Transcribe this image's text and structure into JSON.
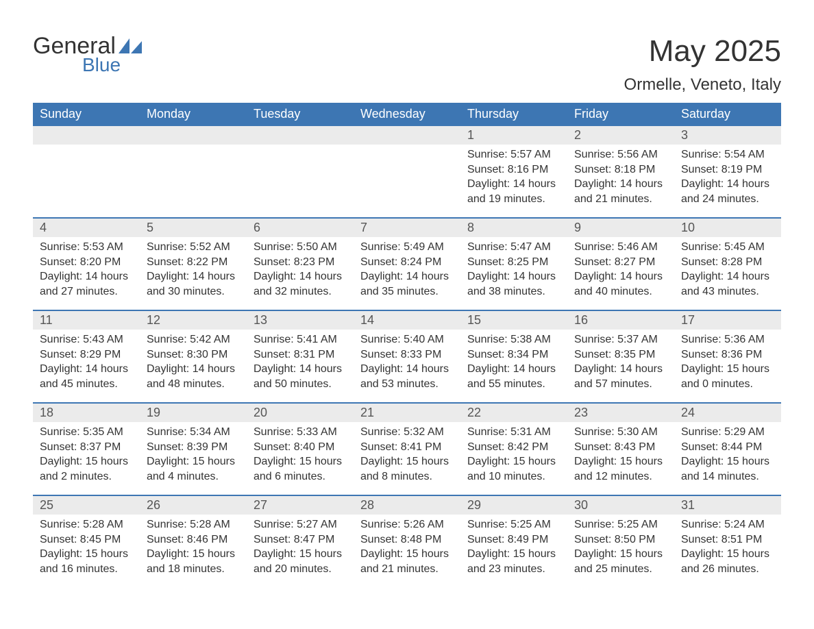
{
  "brand": {
    "word1": "General",
    "word2": "Blue",
    "text_color": "#333333",
    "accent_color": "#3d76b3"
  },
  "title": "May 2025",
  "location": "Ormelle, Veneto, Italy",
  "colors": {
    "header_bg": "#3d76b3",
    "header_text": "#ffffff",
    "daynum_bg": "#ebebeb",
    "daynum_text": "#555555",
    "body_text": "#333333",
    "week_divider": "#3d76b3",
    "page_bg": "#ffffff"
  },
  "typography": {
    "title_fontsize_pt": 33,
    "location_fontsize_pt": 18,
    "weekday_fontsize_pt": 14,
    "daynum_fontsize_pt": 14,
    "cell_fontsize_pt": 12,
    "font_family": "Arial"
  },
  "calendar": {
    "type": "table",
    "weekdays": [
      "Sunday",
      "Monday",
      "Tuesday",
      "Wednesday",
      "Thursday",
      "Friday",
      "Saturday"
    ],
    "weeks": [
      [
        {
          "day": "",
          "sunrise": "",
          "sunset": "",
          "daylight1": "",
          "daylight2": ""
        },
        {
          "day": "",
          "sunrise": "",
          "sunset": "",
          "daylight1": "",
          "daylight2": ""
        },
        {
          "day": "",
          "sunrise": "",
          "sunset": "",
          "daylight1": "",
          "daylight2": ""
        },
        {
          "day": "",
          "sunrise": "",
          "sunset": "",
          "daylight1": "",
          "daylight2": ""
        },
        {
          "day": "1",
          "sunrise": "Sunrise: 5:57 AM",
          "sunset": "Sunset: 8:16 PM",
          "daylight1": "Daylight: 14 hours",
          "daylight2": "and 19 minutes."
        },
        {
          "day": "2",
          "sunrise": "Sunrise: 5:56 AM",
          "sunset": "Sunset: 8:18 PM",
          "daylight1": "Daylight: 14 hours",
          "daylight2": "and 21 minutes."
        },
        {
          "day": "3",
          "sunrise": "Sunrise: 5:54 AM",
          "sunset": "Sunset: 8:19 PM",
          "daylight1": "Daylight: 14 hours",
          "daylight2": "and 24 minutes."
        }
      ],
      [
        {
          "day": "4",
          "sunrise": "Sunrise: 5:53 AM",
          "sunset": "Sunset: 8:20 PM",
          "daylight1": "Daylight: 14 hours",
          "daylight2": "and 27 minutes."
        },
        {
          "day": "5",
          "sunrise": "Sunrise: 5:52 AM",
          "sunset": "Sunset: 8:22 PM",
          "daylight1": "Daylight: 14 hours",
          "daylight2": "and 30 minutes."
        },
        {
          "day": "6",
          "sunrise": "Sunrise: 5:50 AM",
          "sunset": "Sunset: 8:23 PM",
          "daylight1": "Daylight: 14 hours",
          "daylight2": "and 32 minutes."
        },
        {
          "day": "7",
          "sunrise": "Sunrise: 5:49 AM",
          "sunset": "Sunset: 8:24 PM",
          "daylight1": "Daylight: 14 hours",
          "daylight2": "and 35 minutes."
        },
        {
          "day": "8",
          "sunrise": "Sunrise: 5:47 AM",
          "sunset": "Sunset: 8:25 PM",
          "daylight1": "Daylight: 14 hours",
          "daylight2": "and 38 minutes."
        },
        {
          "day": "9",
          "sunrise": "Sunrise: 5:46 AM",
          "sunset": "Sunset: 8:27 PM",
          "daylight1": "Daylight: 14 hours",
          "daylight2": "and 40 minutes."
        },
        {
          "day": "10",
          "sunrise": "Sunrise: 5:45 AM",
          "sunset": "Sunset: 8:28 PM",
          "daylight1": "Daylight: 14 hours",
          "daylight2": "and 43 minutes."
        }
      ],
      [
        {
          "day": "11",
          "sunrise": "Sunrise: 5:43 AM",
          "sunset": "Sunset: 8:29 PM",
          "daylight1": "Daylight: 14 hours",
          "daylight2": "and 45 minutes."
        },
        {
          "day": "12",
          "sunrise": "Sunrise: 5:42 AM",
          "sunset": "Sunset: 8:30 PM",
          "daylight1": "Daylight: 14 hours",
          "daylight2": "and 48 minutes."
        },
        {
          "day": "13",
          "sunrise": "Sunrise: 5:41 AM",
          "sunset": "Sunset: 8:31 PM",
          "daylight1": "Daylight: 14 hours",
          "daylight2": "and 50 minutes."
        },
        {
          "day": "14",
          "sunrise": "Sunrise: 5:40 AM",
          "sunset": "Sunset: 8:33 PM",
          "daylight1": "Daylight: 14 hours",
          "daylight2": "and 53 minutes."
        },
        {
          "day": "15",
          "sunrise": "Sunrise: 5:38 AM",
          "sunset": "Sunset: 8:34 PM",
          "daylight1": "Daylight: 14 hours",
          "daylight2": "and 55 minutes."
        },
        {
          "day": "16",
          "sunrise": "Sunrise: 5:37 AM",
          "sunset": "Sunset: 8:35 PM",
          "daylight1": "Daylight: 14 hours",
          "daylight2": "and 57 minutes."
        },
        {
          "day": "17",
          "sunrise": "Sunrise: 5:36 AM",
          "sunset": "Sunset: 8:36 PM",
          "daylight1": "Daylight: 15 hours",
          "daylight2": "and 0 minutes."
        }
      ],
      [
        {
          "day": "18",
          "sunrise": "Sunrise: 5:35 AM",
          "sunset": "Sunset: 8:37 PM",
          "daylight1": "Daylight: 15 hours",
          "daylight2": "and 2 minutes."
        },
        {
          "day": "19",
          "sunrise": "Sunrise: 5:34 AM",
          "sunset": "Sunset: 8:39 PM",
          "daylight1": "Daylight: 15 hours",
          "daylight2": "and 4 minutes."
        },
        {
          "day": "20",
          "sunrise": "Sunrise: 5:33 AM",
          "sunset": "Sunset: 8:40 PM",
          "daylight1": "Daylight: 15 hours",
          "daylight2": "and 6 minutes."
        },
        {
          "day": "21",
          "sunrise": "Sunrise: 5:32 AM",
          "sunset": "Sunset: 8:41 PM",
          "daylight1": "Daylight: 15 hours",
          "daylight2": "and 8 minutes."
        },
        {
          "day": "22",
          "sunrise": "Sunrise: 5:31 AM",
          "sunset": "Sunset: 8:42 PM",
          "daylight1": "Daylight: 15 hours",
          "daylight2": "and 10 minutes."
        },
        {
          "day": "23",
          "sunrise": "Sunrise: 5:30 AM",
          "sunset": "Sunset: 8:43 PM",
          "daylight1": "Daylight: 15 hours",
          "daylight2": "and 12 minutes."
        },
        {
          "day": "24",
          "sunrise": "Sunrise: 5:29 AM",
          "sunset": "Sunset: 8:44 PM",
          "daylight1": "Daylight: 15 hours",
          "daylight2": "and 14 minutes."
        }
      ],
      [
        {
          "day": "25",
          "sunrise": "Sunrise: 5:28 AM",
          "sunset": "Sunset: 8:45 PM",
          "daylight1": "Daylight: 15 hours",
          "daylight2": "and 16 minutes."
        },
        {
          "day": "26",
          "sunrise": "Sunrise: 5:28 AM",
          "sunset": "Sunset: 8:46 PM",
          "daylight1": "Daylight: 15 hours",
          "daylight2": "and 18 minutes."
        },
        {
          "day": "27",
          "sunrise": "Sunrise: 5:27 AM",
          "sunset": "Sunset: 8:47 PM",
          "daylight1": "Daylight: 15 hours",
          "daylight2": "and 20 minutes."
        },
        {
          "day": "28",
          "sunrise": "Sunrise: 5:26 AM",
          "sunset": "Sunset: 8:48 PM",
          "daylight1": "Daylight: 15 hours",
          "daylight2": "and 21 minutes."
        },
        {
          "day": "29",
          "sunrise": "Sunrise: 5:25 AM",
          "sunset": "Sunset: 8:49 PM",
          "daylight1": "Daylight: 15 hours",
          "daylight2": "and 23 minutes."
        },
        {
          "day": "30",
          "sunrise": "Sunrise: 5:25 AM",
          "sunset": "Sunset: 8:50 PM",
          "daylight1": "Daylight: 15 hours",
          "daylight2": "and 25 minutes."
        },
        {
          "day": "31",
          "sunrise": "Sunrise: 5:24 AM",
          "sunset": "Sunset: 8:51 PM",
          "daylight1": "Daylight: 15 hours",
          "daylight2": "and 26 minutes."
        }
      ]
    ]
  }
}
